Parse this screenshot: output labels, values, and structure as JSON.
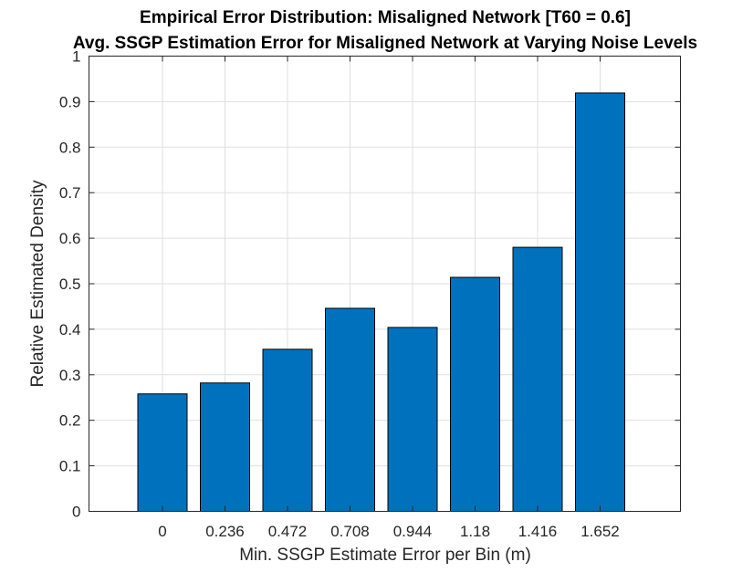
{
  "chart_data": {
    "type": "bar",
    "title": "Empirical Error Distribution: Misaligned Network [T60 = 0.6]",
    "subtitle": "Avg. SSGP Estimation Error for Misaligned Network at Varying Noise Levels",
    "xlabel": "Min. SSGP Estimate Error per Bin (m)",
    "ylabel": "Relative Estimated Density",
    "categories": [
      "0",
      "0.236",
      "0.472",
      "0.708",
      "0.944",
      "1.18",
      "1.416",
      "1.652"
    ],
    "values": [
      0.258,
      0.282,
      0.356,
      0.446,
      0.404,
      0.514,
      0.58,
      0.919
    ],
    "ylim": [
      0,
      1
    ],
    "yticks": [
      "0",
      "0.1",
      "0.2",
      "0.3",
      "0.4",
      "0.5",
      "0.6",
      "0.7",
      "0.8",
      "0.9",
      "1"
    ],
    "grid": true,
    "legend": "none",
    "bar_color": "#0072BD"
  }
}
